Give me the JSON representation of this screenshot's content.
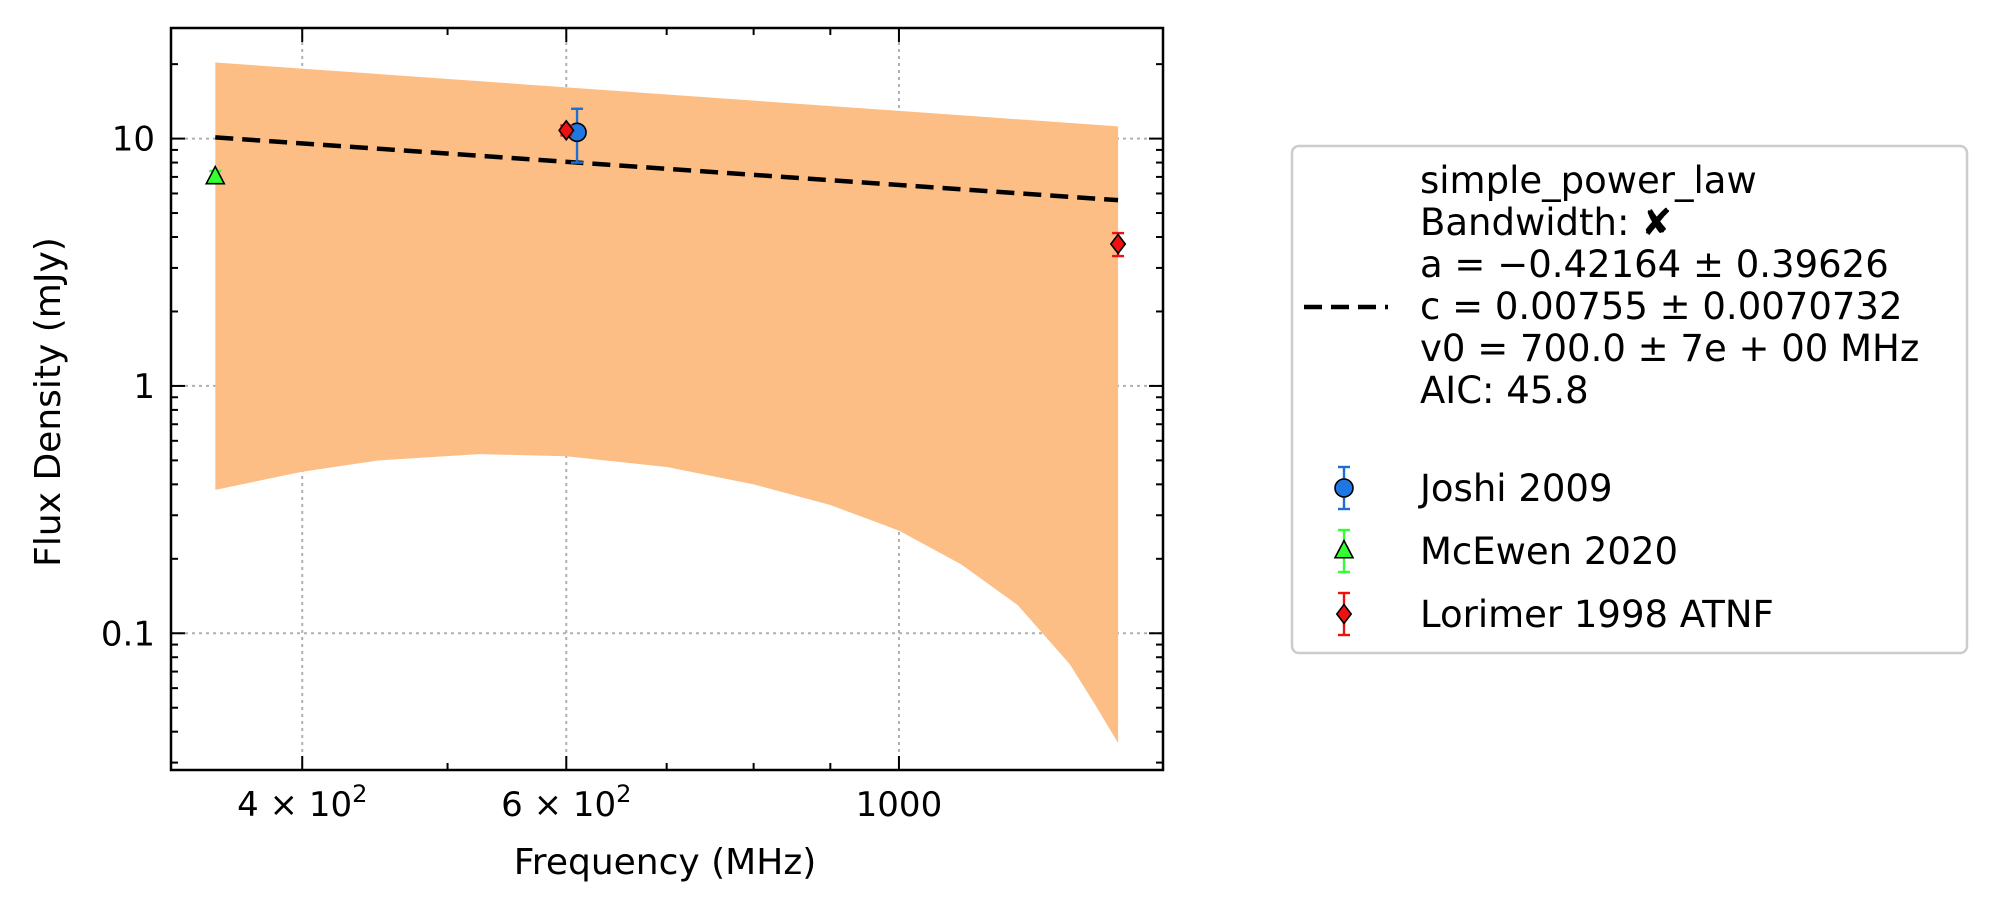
{
  "chart_data": {
    "type": "scatter",
    "xlabel": "Frequency (MHz)",
    "ylabel": "Flux Density (mJy)",
    "x_scale": "log",
    "y_scale": "log",
    "xlim": [
      327,
      1500
    ],
    "ylim": [
      0.028,
      28
    ],
    "grid": true,
    "x_ticks": [
      {
        "value": 400,
        "label": "4 × 10",
        "sup": "2"
      },
      {
        "value": 600,
        "label": "6 × 10",
        "sup": "2"
      },
      {
        "value": 1000,
        "label": "1000",
        "sup": ""
      }
    ],
    "y_ticks": [
      {
        "value": 0.1,
        "label": "0.1"
      },
      {
        "value": 1,
        "label": "1"
      },
      {
        "value": 10,
        "label": "10"
      }
    ],
    "fit": {
      "model": "simple_power_law",
      "a": -0.42164,
      "c": 0.00755,
      "v0": 700.0,
      "x_range": [
        350,
        1400
      ],
      "line_color": "#000000",
      "band_color": "#fdbe85",
      "band_upper": [
        [
          350,
          20.3
        ],
        [
          1400,
          11.2
        ]
      ],
      "band_lower": [
        [
          350,
          0.38
        ],
        [
          400,
          0.45
        ],
        [
          450,
          0.5
        ],
        [
          525,
          0.53
        ],
        [
          600,
          0.52
        ],
        [
          700,
          0.47
        ],
        [
          800,
          0.4
        ],
        [
          900,
          0.33
        ],
        [
          1000,
          0.26
        ],
        [
          1100,
          0.19
        ],
        [
          1200,
          0.13
        ],
        [
          1300,
          0.075
        ],
        [
          1350,
          0.052
        ],
        [
          1400,
          0.036
        ]
      ]
    },
    "series": [
      {
        "name": "Joshi 2009",
        "marker": "circle",
        "color": "#1f77e4",
        "error_color": "#1f6fd1",
        "points": [
          {
            "x": 610,
            "y": 10.6,
            "yerr_low": 8.0,
            "yerr_high": 13.2
          }
        ]
      },
      {
        "name": "McEwen 2020",
        "marker": "triangle",
        "color": "#33ff33",
        "error_color": "#33ff33",
        "points": [
          {
            "x": 350,
            "y": 7.0,
            "yerr_low": 6.6,
            "yerr_high": 7.4
          }
        ]
      },
      {
        "name": "Lorimer 1998 ATNF",
        "marker": "diamond",
        "color": "#ee1111",
        "error_color": "#ee1111",
        "points": [
          {
            "x": 600,
            "y": 10.8,
            "yerr_low": 10.3,
            "yerr_high": 11.3
          },
          {
            "x": 1400,
            "y": 3.75,
            "yerr_low": 3.35,
            "yerr_high": 4.15
          }
        ]
      }
    ],
    "legend": {
      "placement": "right",
      "fit_lines": [
        "simple_power_law",
        "Bandwidth: ✘",
        "a = −0.42164 ± 0.39626",
        "c = 0.00755 ± 0.0070732",
        "v0 = 700.0 ± 7e + 00 MHz",
        "AIC: 45.8"
      ]
    }
  }
}
